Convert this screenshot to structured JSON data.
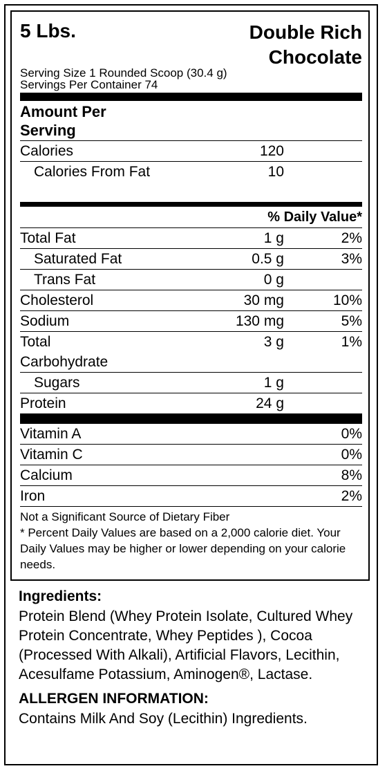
{
  "header": {
    "weight": "5 Lbs.",
    "flavor_line1": "Double Rich",
    "flavor_line2": "Chocolate",
    "serving_size": "Serving Size 1 Rounded Scoop (30.4 g)",
    "servings_per_container": "Servings Per Container 74"
  },
  "amount_per_serving": "Amount Per Serving",
  "calories": {
    "label": "Calories",
    "value": "120"
  },
  "calories_from_fat": {
    "label": "Calories From Fat",
    "value": "10"
  },
  "daily_value_header": "% Daily Value*",
  "nutrients": [
    {
      "label": "Total Fat",
      "amount": "1 g",
      "dv": "2%"
    },
    {
      "label": "Saturated Fat",
      "amount": "0.5 g",
      "dv": "3%"
    },
    {
      "label": "Trans Fat",
      "amount": "0 g",
      "dv": ""
    },
    {
      "label": "Cholesterol",
      "amount": "30 mg",
      "dv": "10%"
    },
    {
      "label": "Sodium",
      "amount": "130 mg",
      "dv": "5%"
    },
    {
      "label": "Total Carbohydrate",
      "amount": "3 g",
      "dv": "1%"
    },
    {
      "label": "Sugars",
      "amount": "1 g",
      "dv": ""
    },
    {
      "label": "Protein",
      "amount": "24 g",
      "dv": ""
    }
  ],
  "vitamins": [
    {
      "label": "Vitamin A",
      "dv": "0%"
    },
    {
      "label": "Vitamin C",
      "dv": "0%"
    },
    {
      "label": "Calcium",
      "dv": "8%"
    },
    {
      "label": "Iron",
      "dv": "2%"
    }
  ],
  "footnotes": {
    "fiber": "Not a Significant Source of Dietary Fiber",
    "percent": "* Percent Daily Values are based on a 2,000 calorie diet. Your Daily Values may be higher or lower depending on your calorie needs."
  },
  "ingredients": {
    "title": "Ingredients:",
    "text": "Protein Blend (Whey Protein Isolate, Cultured Whey Protein Concentrate, Whey Peptides ), Cocoa (Processed With Alkali), Artificial Flavors, Lecithin, Acesulfame Potassium, Aminogen®, Lactase."
  },
  "allergen": {
    "title": "ALLERGEN INFORMATION:",
    "text": "Contains Milk And Soy (Lecithin) Ingredients."
  }
}
